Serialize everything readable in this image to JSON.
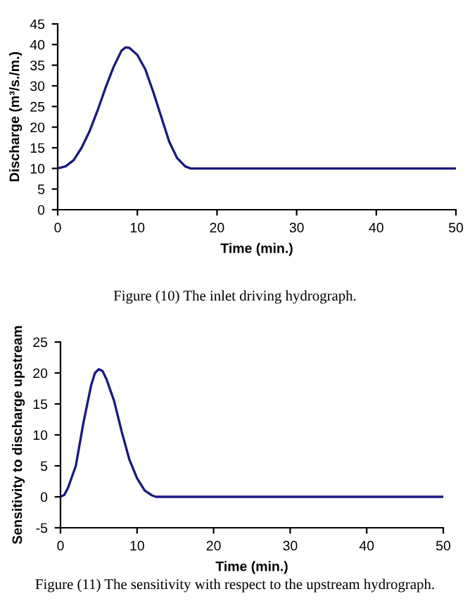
{
  "chart_data": [
    {
      "type": "line",
      "xlabel": "Time (min.)",
      "ylabel": "Discharge (m³/s./m.)",
      "xlim": [
        0,
        50
      ],
      "xticks": [
        0,
        10,
        20,
        30,
        40,
        50
      ],
      "ylim": [
        0,
        45
      ],
      "yticks": [
        0,
        5,
        10,
        15,
        20,
        25,
        30,
        35,
        40,
        45
      ],
      "grid": false,
      "legend": false,
      "marker": "none",
      "line_style": "solid",
      "annotations": [
        "Figure (10) The inlet driving hydrograph."
      ],
      "series": [
        {
          "color": "#1a1a80",
          "x": [
            0,
            1,
            2,
            3,
            4,
            5,
            6,
            7,
            8,
            8.5,
            9,
            10,
            11,
            12,
            13,
            14,
            15,
            16,
            16.7,
            20,
            30,
            40,
            50
          ],
          "values": [
            10,
            10.5,
            12,
            15,
            19,
            24,
            29.5,
            34.5,
            38.5,
            39.3,
            39.2,
            37.5,
            34,
            28.5,
            22.5,
            16.5,
            12.5,
            10.5,
            10,
            10,
            10,
            10,
            10
          ]
        }
      ]
    },
    {
      "type": "line",
      "xlabel": "Time (min.)",
      "ylabel": "Sensitivity to discharge upstream",
      "xlim": [
        0,
        50
      ],
      "xticks": [
        0,
        10,
        20,
        30,
        40,
        50
      ],
      "ylim": [
        -5,
        25
      ],
      "yticks": [
        -5,
        0,
        5,
        10,
        15,
        20,
        25
      ],
      "grid": false,
      "legend": false,
      "marker": "none",
      "line_style": "solid",
      "annotations": [
        "Figure (11) The sensitivity with respect to the upstream hydrograph."
      ],
      "series": [
        {
          "color": "#1a1a80",
          "x": [
            0,
            0.5,
            1,
            2,
            3,
            4,
            4.5,
            5,
            5.5,
            6,
            7,
            8,
            9,
            10,
            11,
            12,
            12.5,
            20,
            30,
            40,
            50
          ],
          "values": [
            0,
            0.3,
            1.5,
            5,
            12,
            18,
            20,
            20.6,
            20.3,
            19,
            15.5,
            10.5,
            6,
            3,
            1,
            0.2,
            0,
            0,
            0,
            0,
            0
          ]
        }
      ]
    }
  ]
}
